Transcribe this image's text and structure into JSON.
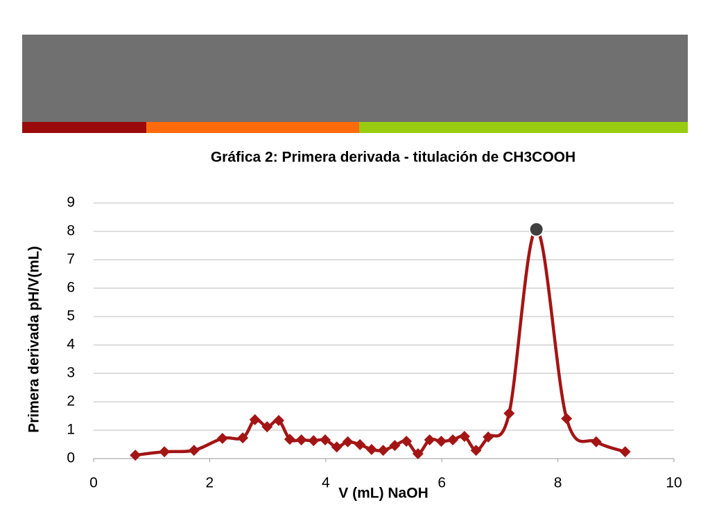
{
  "chart_data": {
    "type": "line",
    "title": "Gráfica 2: Primera derivada - titulación de CH3COOH",
    "x_label": "V (mL) NaOH",
    "y_label": "Primera derivada pH/V(mL)",
    "xlim": [
      0,
      10
    ],
    "xticks": [
      0,
      2,
      4,
      6,
      8,
      10
    ],
    "ylim": [
      0,
      9
    ],
    "yticks": [
      0,
      1,
      2,
      3,
      4,
      5,
      6,
      7,
      8,
      9
    ],
    "grid": true,
    "highlight_point": 27,
    "highlight_color": "#404040",
    "series": [
      {
        "color": "#a31515",
        "x": [
          0.72,
          1.22,
          1.73,
          2.22,
          2.57,
          2.78,
          2.99,
          3.19,
          3.38,
          3.58,
          3.79,
          3.99,
          4.19,
          4.38,
          4.59,
          4.79,
          4.99,
          5.19,
          5.39,
          5.59,
          5.79,
          5.99,
          6.19,
          6.39,
          6.59,
          6.8,
          7.16,
          7.63,
          8.15,
          8.66,
          9.16
        ],
        "values": [
          0.12,
          0.24,
          0.29,
          0.71,
          0.73,
          1.37,
          1.12,
          1.34,
          0.68,
          0.66,
          0.63,
          0.66,
          0.41,
          0.59,
          0.49,
          0.32,
          0.29,
          0.46,
          0.61,
          0.17,
          0.66,
          0.61,
          0.66,
          0.78,
          0.29,
          0.76,
          1.59,
          8.07,
          1.41,
          0.59,
          0.24
        ]
      }
    ]
  }
}
